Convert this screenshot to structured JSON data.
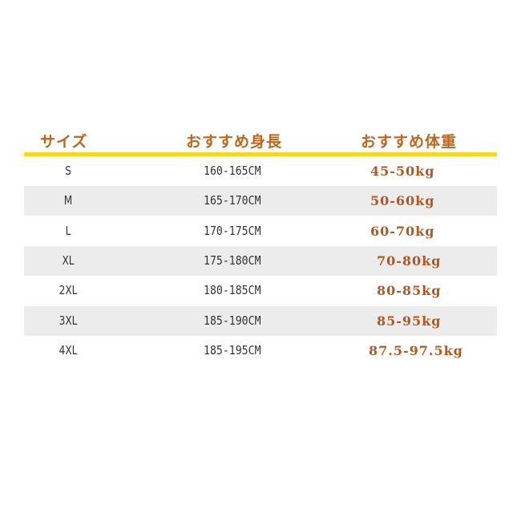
{
  "header": {
    "size": "サイズ",
    "height": "おすすめ身長",
    "weight": "おすすめ体重"
  },
  "colors": {
    "header_text": "#c0651c",
    "divider": "#f7d81d",
    "stripe": "#ececec",
    "weight_text": "#b5561e"
  },
  "rows": [
    {
      "size": "S",
      "height": "160-165CM",
      "weight": "45-50kg"
    },
    {
      "size": "M",
      "height": "165-170CM",
      "weight": "50-60kg"
    },
    {
      "size": "L",
      "height": "170-175CM",
      "weight": "60-70kg"
    },
    {
      "size": "XL",
      "height": "175-180CM",
      "weight": "70-80kg"
    },
    {
      "size": "2XL",
      "height": "180-185CM",
      "weight": "80-85kg"
    },
    {
      "size": "3XL",
      "height": "185-190CM",
      "weight": "85-95kg"
    },
    {
      "size": "4XL",
      "height": "185-195CM",
      "weight": "87.5-97.5kg"
    }
  ]
}
